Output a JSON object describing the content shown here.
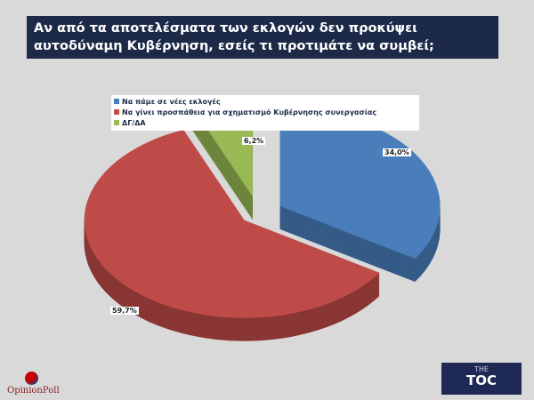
{
  "title": "Αν από τα αποτελέσματα των εκλογών δεν προκύψει αυτοδύναμη Κυβέρνηση, εσείς τι προτιμάτε να συμβεί;",
  "chart_data": {
    "type": "pie",
    "title": "Αν από τα αποτελέσματα των εκλογών δεν προκύψει αυτοδύναμη Κυβέρνηση, εσείς τι προτιμάτε να συμβεί;",
    "legend_position": "top",
    "slices": [
      {
        "label": "Να πάμε σε νέες εκλογές",
        "value": 34.0,
        "display": "34,0%",
        "color": "#4a7ebb"
      },
      {
        "label": "Να γίνει προσπάθεια για σχηματισμό Κυβέρνησης συνεργασίας",
        "value": 59.7,
        "display": "59,7%",
        "color": "#be4b48"
      },
      {
        "label": "ΔΓ/ΔΑ",
        "value": 6.2,
        "display": "6,2%",
        "color": "#98b954"
      }
    ]
  },
  "logos": {
    "left": "OpinionPoll",
    "right_top": "THE",
    "right_main": "TOC"
  }
}
